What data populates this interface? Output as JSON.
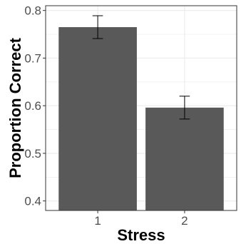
{
  "chart_data": {
    "type": "bar",
    "title": "",
    "xlabel": "Stress",
    "ylabel": "Proportion Correct",
    "categories": [
      "1",
      "2"
    ],
    "values": [
      0.765,
      0.596
    ],
    "error_low": [
      0.741,
      0.572
    ],
    "error_high": [
      0.789,
      0.62
    ],
    "ylim": [
      0.38,
      0.81
    ],
    "yticks": [
      0.4,
      0.5,
      0.6,
      0.7,
      0.8
    ],
    "ytick_labels": [
      "0.4",
      "0.5",
      "0.6",
      "0.7",
      "0.8"
    ],
    "grid": true,
    "legend": "none",
    "bar_color": "#595959",
    "grid_color": "#ebebeb",
    "frame_color": "#333333"
  }
}
